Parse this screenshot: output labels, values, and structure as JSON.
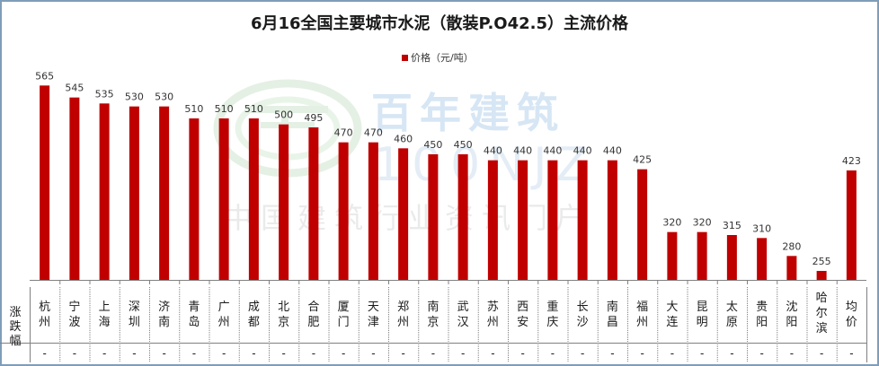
{
  "title": "6月16全国主要城市水泥（散装P.O42.5）主流价格",
  "watermark": {
    "brand": "百年建筑",
    "code": "100NJZ",
    "subtitle": "中国建筑行业资讯门户"
  },
  "table": {
    "row_label": "涨跌幅"
  },
  "colors": {
    "bar": "#c00000",
    "axis": "#808080",
    "frame": "#7f9db9"
  },
  "chart_data": {
    "type": "bar",
    "title": "6月16全国主要城市水泥（散装P.O42.5）主流价格",
    "categories": [
      "杭州",
      "宁波",
      "上海",
      "深圳",
      "济南",
      "青岛",
      "广州",
      "成都",
      "北京",
      "合肥",
      "厦门",
      "天津",
      "郑州",
      "南京",
      "武汉",
      "苏州",
      "西安",
      "重庆",
      "长沙",
      "南昌",
      "福州",
      "大连",
      "昆明",
      "太原",
      "贵阳",
      "沈阳",
      "哈尔滨",
      "均价"
    ],
    "series": [
      {
        "name": "价格（元/吨）",
        "values": [
          565,
          545,
          535,
          530,
          530,
          510,
          510,
          510,
          500,
          495,
          470,
          470,
          460,
          450,
          450,
          440,
          440,
          440,
          440,
          440,
          425,
          320,
          320,
          315,
          310,
          280,
          255,
          423
        ]
      }
    ],
    "changes": [
      "-",
      "-",
      "-",
      "-",
      "-",
      "-",
      "-",
      "-",
      "-",
      "-",
      "-",
      "-",
      "-",
      "-",
      "-",
      "-",
      "-",
      "-",
      "-",
      "-",
      "-",
      "-",
      "-",
      "-",
      "-",
      "-",
      "-",
      "-"
    ],
    "ylim": [
      240,
      600
    ],
    "legend_position": "top-center",
    "grid": false
  }
}
